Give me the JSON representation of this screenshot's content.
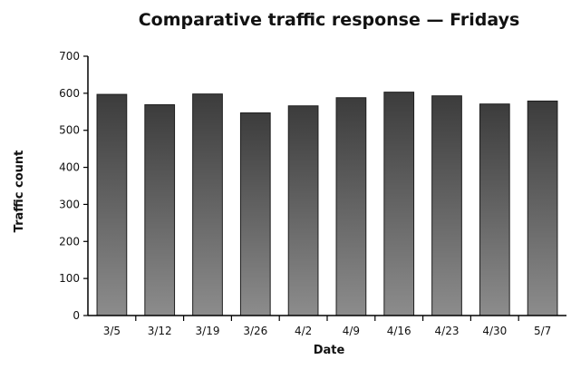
{
  "chart_data": {
    "type": "bar",
    "title": "Comparative traffic response — Fridays",
    "xlabel": "Date",
    "ylabel": "Traffic count",
    "categories": [
      "3/5",
      "3/12",
      "3/19",
      "3/26",
      "4/2",
      "4/9",
      "4/16",
      "4/23",
      "4/30",
      "5/7"
    ],
    "values": [
      597,
      569,
      598,
      547,
      566,
      588,
      603,
      593,
      571,
      579
    ],
    "ylim": [
      0,
      700
    ],
    "yticks": [
      "0",
      "100",
      "200",
      "300",
      "400",
      "500",
      "600",
      "700"
    ],
    "grid": false,
    "legend": "none",
    "bar_gradient": {
      "top": "#3c3c3c",
      "bottom": "#8c8c8c"
    }
  }
}
